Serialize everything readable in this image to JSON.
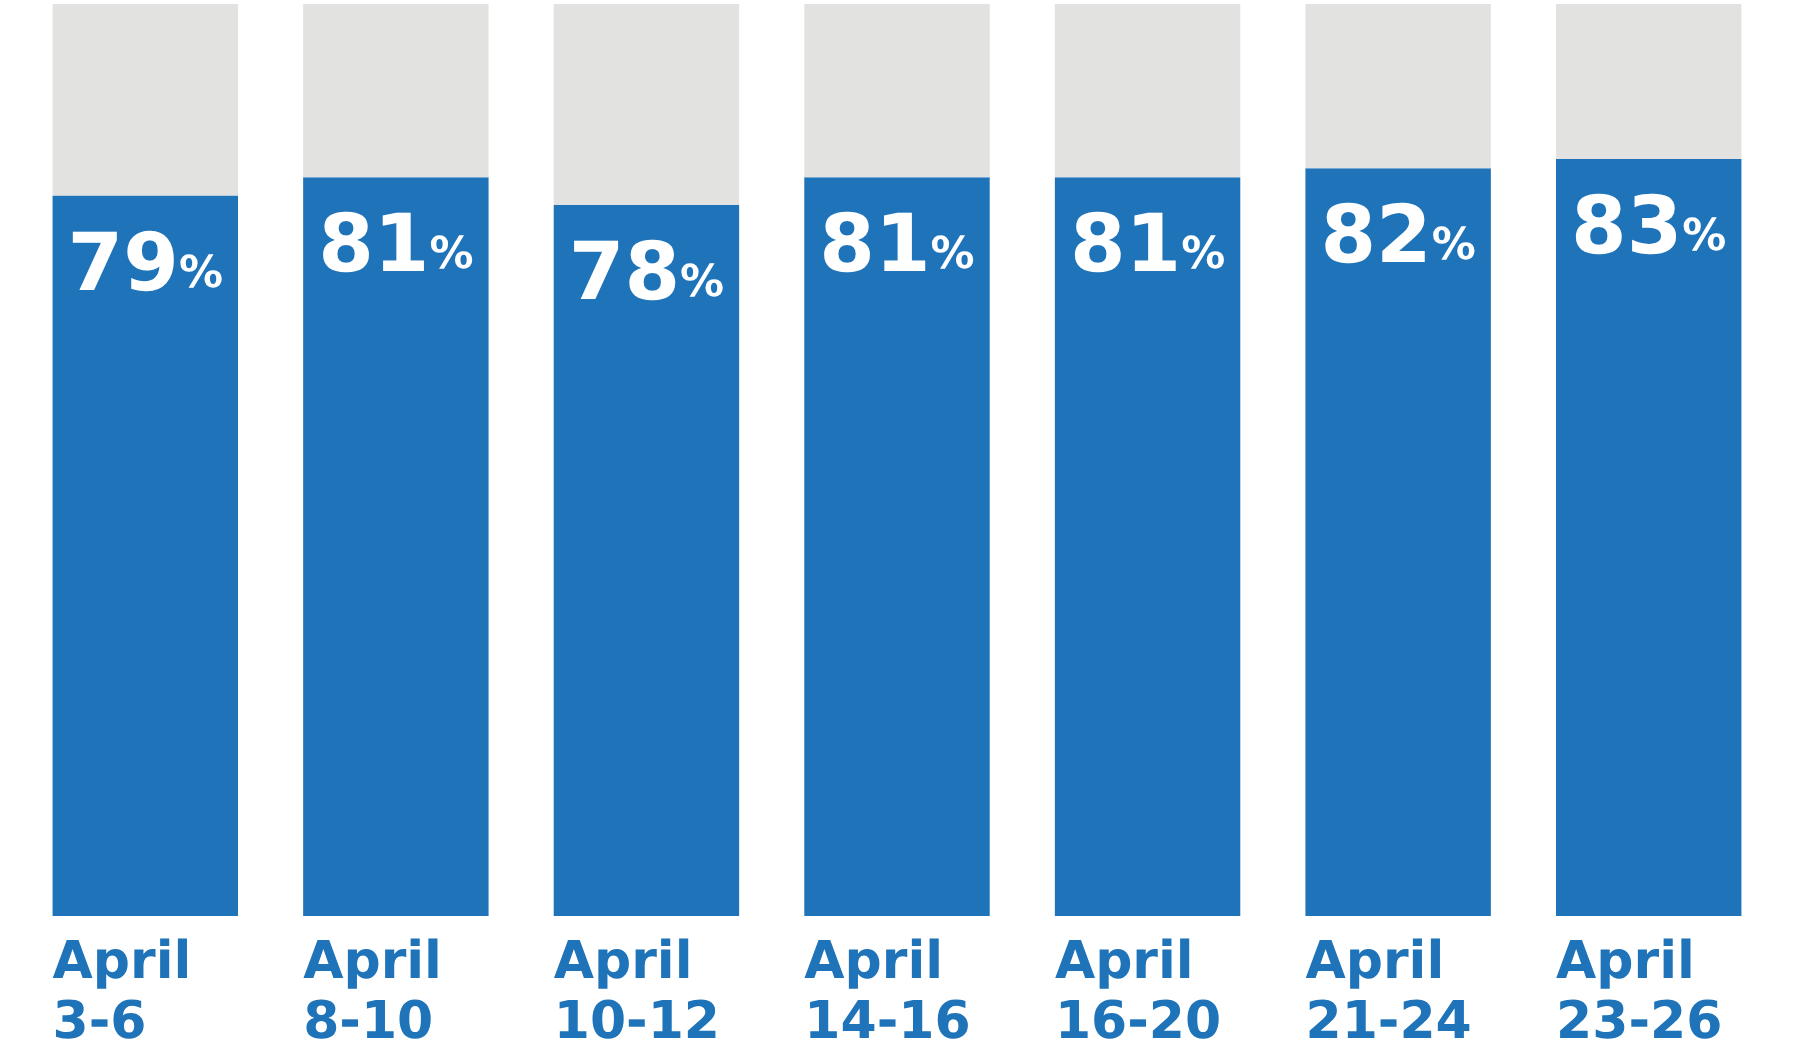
{
  "chart_data": {
    "type": "bar",
    "stacked": true,
    "categories": [
      "April 3-6",
      "April 8-10",
      "April 10-12",
      "April 14-16",
      "April 16-20",
      "April 21-24",
      "April 23-26"
    ],
    "ylim": [
      0,
      100
    ],
    "series": [
      {
        "color": "#1e73b9",
        "values": [
          79,
          81,
          78,
          81,
          81,
          82,
          83
        ],
        "value_labels": [
          "79%",
          "81%",
          "78%",
          "81%",
          "81%",
          "82%",
          "83%"
        ]
      },
      {
        "color": "#e2e3e1",
        "values": [
          21,
          19,
          22,
          19,
          19,
          18,
          17
        ]
      }
    ],
    "grid": false
  }
}
